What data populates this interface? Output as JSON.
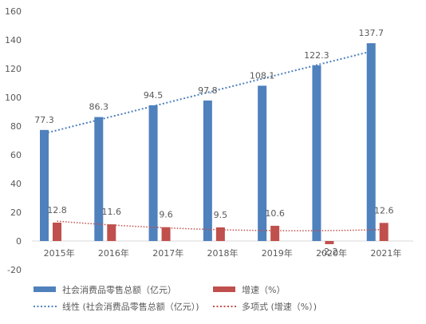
{
  "chart_data": {
    "type": "bar",
    "title": "",
    "xlabel": "",
    "ylabel": "",
    "ylim": [
      -20,
      160
    ],
    "yticks": [
      -20,
      0,
      20,
      40,
      60,
      80,
      100,
      120,
      140,
      160
    ],
    "grid": false,
    "legend_position": "bottom",
    "categories": [
      "2015年",
      "2016年",
      "2017年",
      "2018年",
      "2019年",
      "2020年",
      "2021年"
    ],
    "series": [
      {
        "name": "社会消费品零售总额（亿元）",
        "type": "bar",
        "color": "#4F81BD",
        "values": [
          77.3,
          86.3,
          94.5,
          97.8,
          108.1,
          122.3,
          137.7
        ]
      },
      {
        "name": "增速（%）",
        "type": "bar",
        "color": "#C0504D",
        "values": [
          12.8,
          11.6,
          9.6,
          9.5,
          10.6,
          -2.2,
          12.6
        ]
      }
    ],
    "trendlines": [
      {
        "name": "线性 (社会消费品零售总额（亿元）)",
        "kind": "linear",
        "series": 0,
        "color": "#4F81BD",
        "style": "dotted"
      },
      {
        "name": "多项式 (增速（%）)",
        "kind": "polynomial",
        "series": 1,
        "color": "#C0504D",
        "style": "dotted"
      }
    ]
  }
}
